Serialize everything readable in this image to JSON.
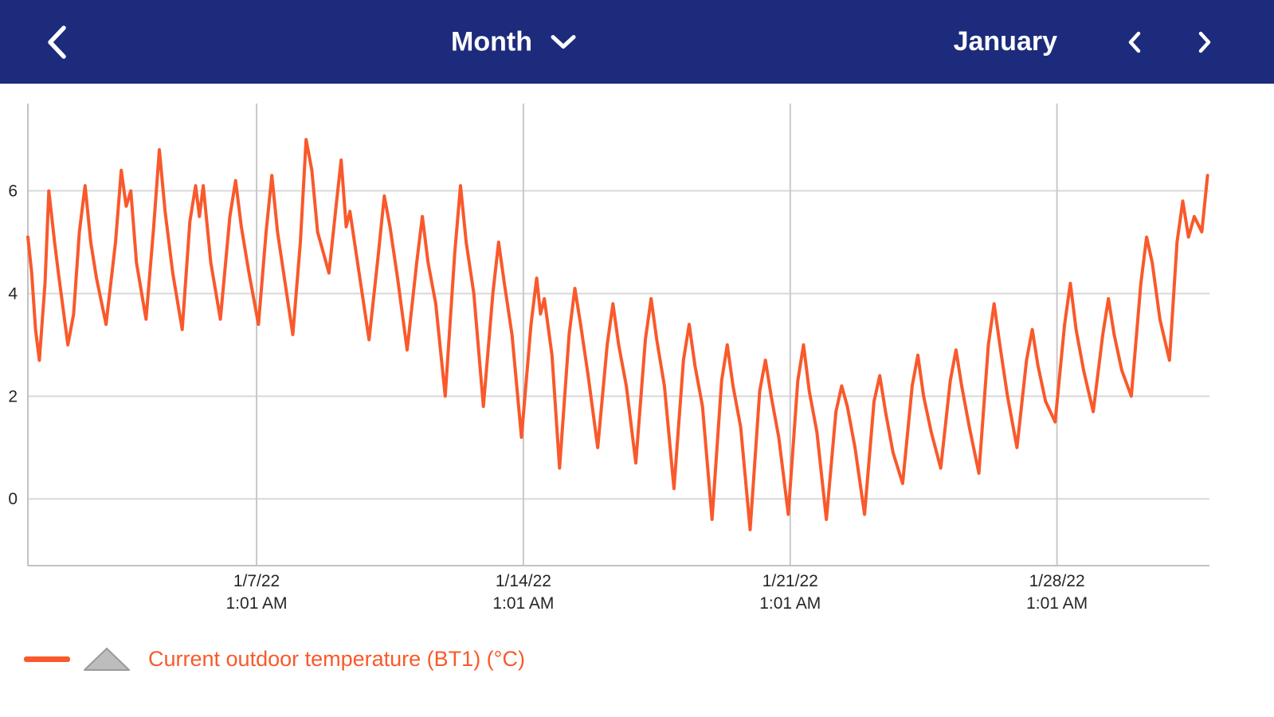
{
  "header": {
    "period_selector": {
      "label": "Month"
    },
    "month_label": "January"
  },
  "icons": {
    "back": "chevron-left",
    "period_dropdown": "chevron-down",
    "prev_month": "chevron-left",
    "next_month": "chevron-right",
    "legend_shape": "gray-triangle"
  },
  "legend": {
    "label": "Current outdoor temperature (BT1) (°C)"
  },
  "colors": {
    "header_bg": "#1d2b7c",
    "line": "#f9592b",
    "grid_h": "#d9d9d9",
    "grid_v": "#c9c9c9",
    "axis": "#c2c2c2",
    "tick_text": "#262626",
    "triangle_fill": "#bdbdbd",
    "triangle_stroke": "#9a9a9a"
  },
  "chart_data": {
    "type": "line",
    "x_unit": "days since 1/1/22 (daily temperature oscillation)",
    "x_range": [
      0,
      31
    ],
    "y_range": [
      -1.3,
      7.7
    ],
    "y_ticks": [
      0,
      2,
      4,
      6
    ],
    "x_ticks": [
      {
        "pos": 6,
        "label": "1/7/22",
        "sublabel": "1:01 AM"
      },
      {
        "pos": 13,
        "label": "1/14/22",
        "sublabel": "1:01 AM"
      },
      {
        "pos": 20,
        "label": "1/21/22",
        "sublabel": "1:01 AM"
      },
      {
        "pos": 27,
        "label": "1/28/22",
        "sublabel": "1:01 AM"
      }
    ],
    "grid": true,
    "legend_position": "bottom-left",
    "series": [
      {
        "name": "Current outdoor temperature (BT1) (°C)",
        "color": "#f9592b",
        "points": [
          [
            0.0,
            5.1
          ],
          [
            0.1,
            4.4
          ],
          [
            0.2,
            3.3
          ],
          [
            0.3,
            2.7
          ],
          [
            0.45,
            4.2
          ],
          [
            0.55,
            6.0
          ],
          [
            0.7,
            5.0
          ],
          [
            0.8,
            4.4
          ],
          [
            1.05,
            3.0
          ],
          [
            1.2,
            3.6
          ],
          [
            1.35,
            5.2
          ],
          [
            1.5,
            6.1
          ],
          [
            1.65,
            5.0
          ],
          [
            1.8,
            4.3
          ],
          [
            2.05,
            3.4
          ],
          [
            2.3,
            5.0
          ],
          [
            2.45,
            6.4
          ],
          [
            2.58,
            5.7
          ],
          [
            2.7,
            6.0
          ],
          [
            2.85,
            4.6
          ],
          [
            3.1,
            3.5
          ],
          [
            3.3,
            5.3
          ],
          [
            3.45,
            6.8
          ],
          [
            3.6,
            5.6
          ],
          [
            3.8,
            4.4
          ],
          [
            4.05,
            3.3
          ],
          [
            4.25,
            5.4
          ],
          [
            4.4,
            6.1
          ],
          [
            4.5,
            5.5
          ],
          [
            4.6,
            6.1
          ],
          [
            4.8,
            4.6
          ],
          [
            5.05,
            3.5
          ],
          [
            5.3,
            5.5
          ],
          [
            5.45,
            6.2
          ],
          [
            5.6,
            5.3
          ],
          [
            5.8,
            4.4
          ],
          [
            6.05,
            3.4
          ],
          [
            6.25,
            5.2
          ],
          [
            6.4,
            6.3
          ],
          [
            6.55,
            5.2
          ],
          [
            6.75,
            4.2
          ],
          [
            6.95,
            3.2
          ],
          [
            7.15,
            5.0
          ],
          [
            7.3,
            7.0
          ],
          [
            7.45,
            6.4
          ],
          [
            7.6,
            5.2
          ],
          [
            7.9,
            4.4
          ],
          [
            8.1,
            5.8
          ],
          [
            8.22,
            6.6
          ],
          [
            8.35,
            5.3
          ],
          [
            8.45,
            5.6
          ],
          [
            8.65,
            4.6
          ],
          [
            8.95,
            3.1
          ],
          [
            9.2,
            4.8
          ],
          [
            9.35,
            5.9
          ],
          [
            9.5,
            5.3
          ],
          [
            9.7,
            4.3
          ],
          [
            9.95,
            2.9
          ],
          [
            10.2,
            4.6
          ],
          [
            10.35,
            5.5
          ],
          [
            10.5,
            4.6
          ],
          [
            10.7,
            3.8
          ],
          [
            10.95,
            2.0
          ],
          [
            11.2,
            4.8
          ],
          [
            11.35,
            6.1
          ],
          [
            11.5,
            5.0
          ],
          [
            11.7,
            4.0
          ],
          [
            11.95,
            1.8
          ],
          [
            12.2,
            4.0
          ],
          [
            12.35,
            5.0
          ],
          [
            12.5,
            4.2
          ],
          [
            12.7,
            3.2
          ],
          [
            12.95,
            1.2
          ],
          [
            13.2,
            3.4
          ],
          [
            13.35,
            4.3
          ],
          [
            13.45,
            3.6
          ],
          [
            13.55,
            3.9
          ],
          [
            13.75,
            2.8
          ],
          [
            13.95,
            0.6
          ],
          [
            14.2,
            3.2
          ],
          [
            14.35,
            4.1
          ],
          [
            14.5,
            3.4
          ],
          [
            14.7,
            2.4
          ],
          [
            14.95,
            1.0
          ],
          [
            15.2,
            3.0
          ],
          [
            15.35,
            3.8
          ],
          [
            15.5,
            3.0
          ],
          [
            15.7,
            2.2
          ],
          [
            15.95,
            0.7
          ],
          [
            16.2,
            3.1
          ],
          [
            16.35,
            3.9
          ],
          [
            16.5,
            3.1
          ],
          [
            16.7,
            2.2
          ],
          [
            16.95,
            0.2
          ],
          [
            17.2,
            2.7
          ],
          [
            17.35,
            3.4
          ],
          [
            17.5,
            2.6
          ],
          [
            17.7,
            1.8
          ],
          [
            17.95,
            -0.4
          ],
          [
            18.2,
            2.3
          ],
          [
            18.35,
            3.0
          ],
          [
            18.5,
            2.2
          ],
          [
            18.7,
            1.4
          ],
          [
            18.95,
            -0.6
          ],
          [
            19.2,
            2.1
          ],
          [
            19.35,
            2.7
          ],
          [
            19.5,
            2.0
          ],
          [
            19.7,
            1.2
          ],
          [
            19.95,
            -0.3
          ],
          [
            20.2,
            2.3
          ],
          [
            20.35,
            3.0
          ],
          [
            20.5,
            2.1
          ],
          [
            20.7,
            1.3
          ],
          [
            20.95,
            -0.4
          ],
          [
            21.2,
            1.7
          ],
          [
            21.35,
            2.2
          ],
          [
            21.5,
            1.8
          ],
          [
            21.7,
            1.0
          ],
          [
            21.95,
            -0.3
          ],
          [
            22.2,
            1.9
          ],
          [
            22.35,
            2.4
          ],
          [
            22.5,
            1.7
          ],
          [
            22.7,
            0.9
          ],
          [
            22.95,
            0.3
          ],
          [
            23.2,
            2.2
          ],
          [
            23.35,
            2.8
          ],
          [
            23.5,
            2.0
          ],
          [
            23.7,
            1.3
          ],
          [
            23.95,
            0.6
          ],
          [
            24.2,
            2.3
          ],
          [
            24.35,
            2.9
          ],
          [
            24.5,
            2.2
          ],
          [
            24.7,
            1.4
          ],
          [
            24.95,
            0.5
          ],
          [
            25.2,
            3.0
          ],
          [
            25.35,
            3.8
          ],
          [
            25.5,
            3.0
          ],
          [
            25.7,
            2.0
          ],
          [
            25.95,
            1.0
          ],
          [
            26.2,
            2.7
          ],
          [
            26.35,
            3.3
          ],
          [
            26.5,
            2.6
          ],
          [
            26.7,
            1.9
          ],
          [
            26.95,
            1.5
          ],
          [
            27.2,
            3.4
          ],
          [
            27.35,
            4.2
          ],
          [
            27.5,
            3.3
          ],
          [
            27.7,
            2.5
          ],
          [
            27.95,
            1.7
          ],
          [
            28.2,
            3.2
          ],
          [
            28.35,
            3.9
          ],
          [
            28.5,
            3.2
          ],
          [
            28.7,
            2.5
          ],
          [
            28.95,
            2.0
          ],
          [
            29.2,
            4.2
          ],
          [
            29.35,
            5.1
          ],
          [
            29.5,
            4.6
          ],
          [
            29.7,
            3.5
          ],
          [
            29.95,
            2.7
          ],
          [
            30.15,
            5.0
          ],
          [
            30.3,
            5.8
          ],
          [
            30.45,
            5.1
          ],
          [
            30.6,
            5.5
          ],
          [
            30.8,
            5.2
          ],
          [
            30.95,
            6.3
          ]
        ]
      }
    ]
  }
}
